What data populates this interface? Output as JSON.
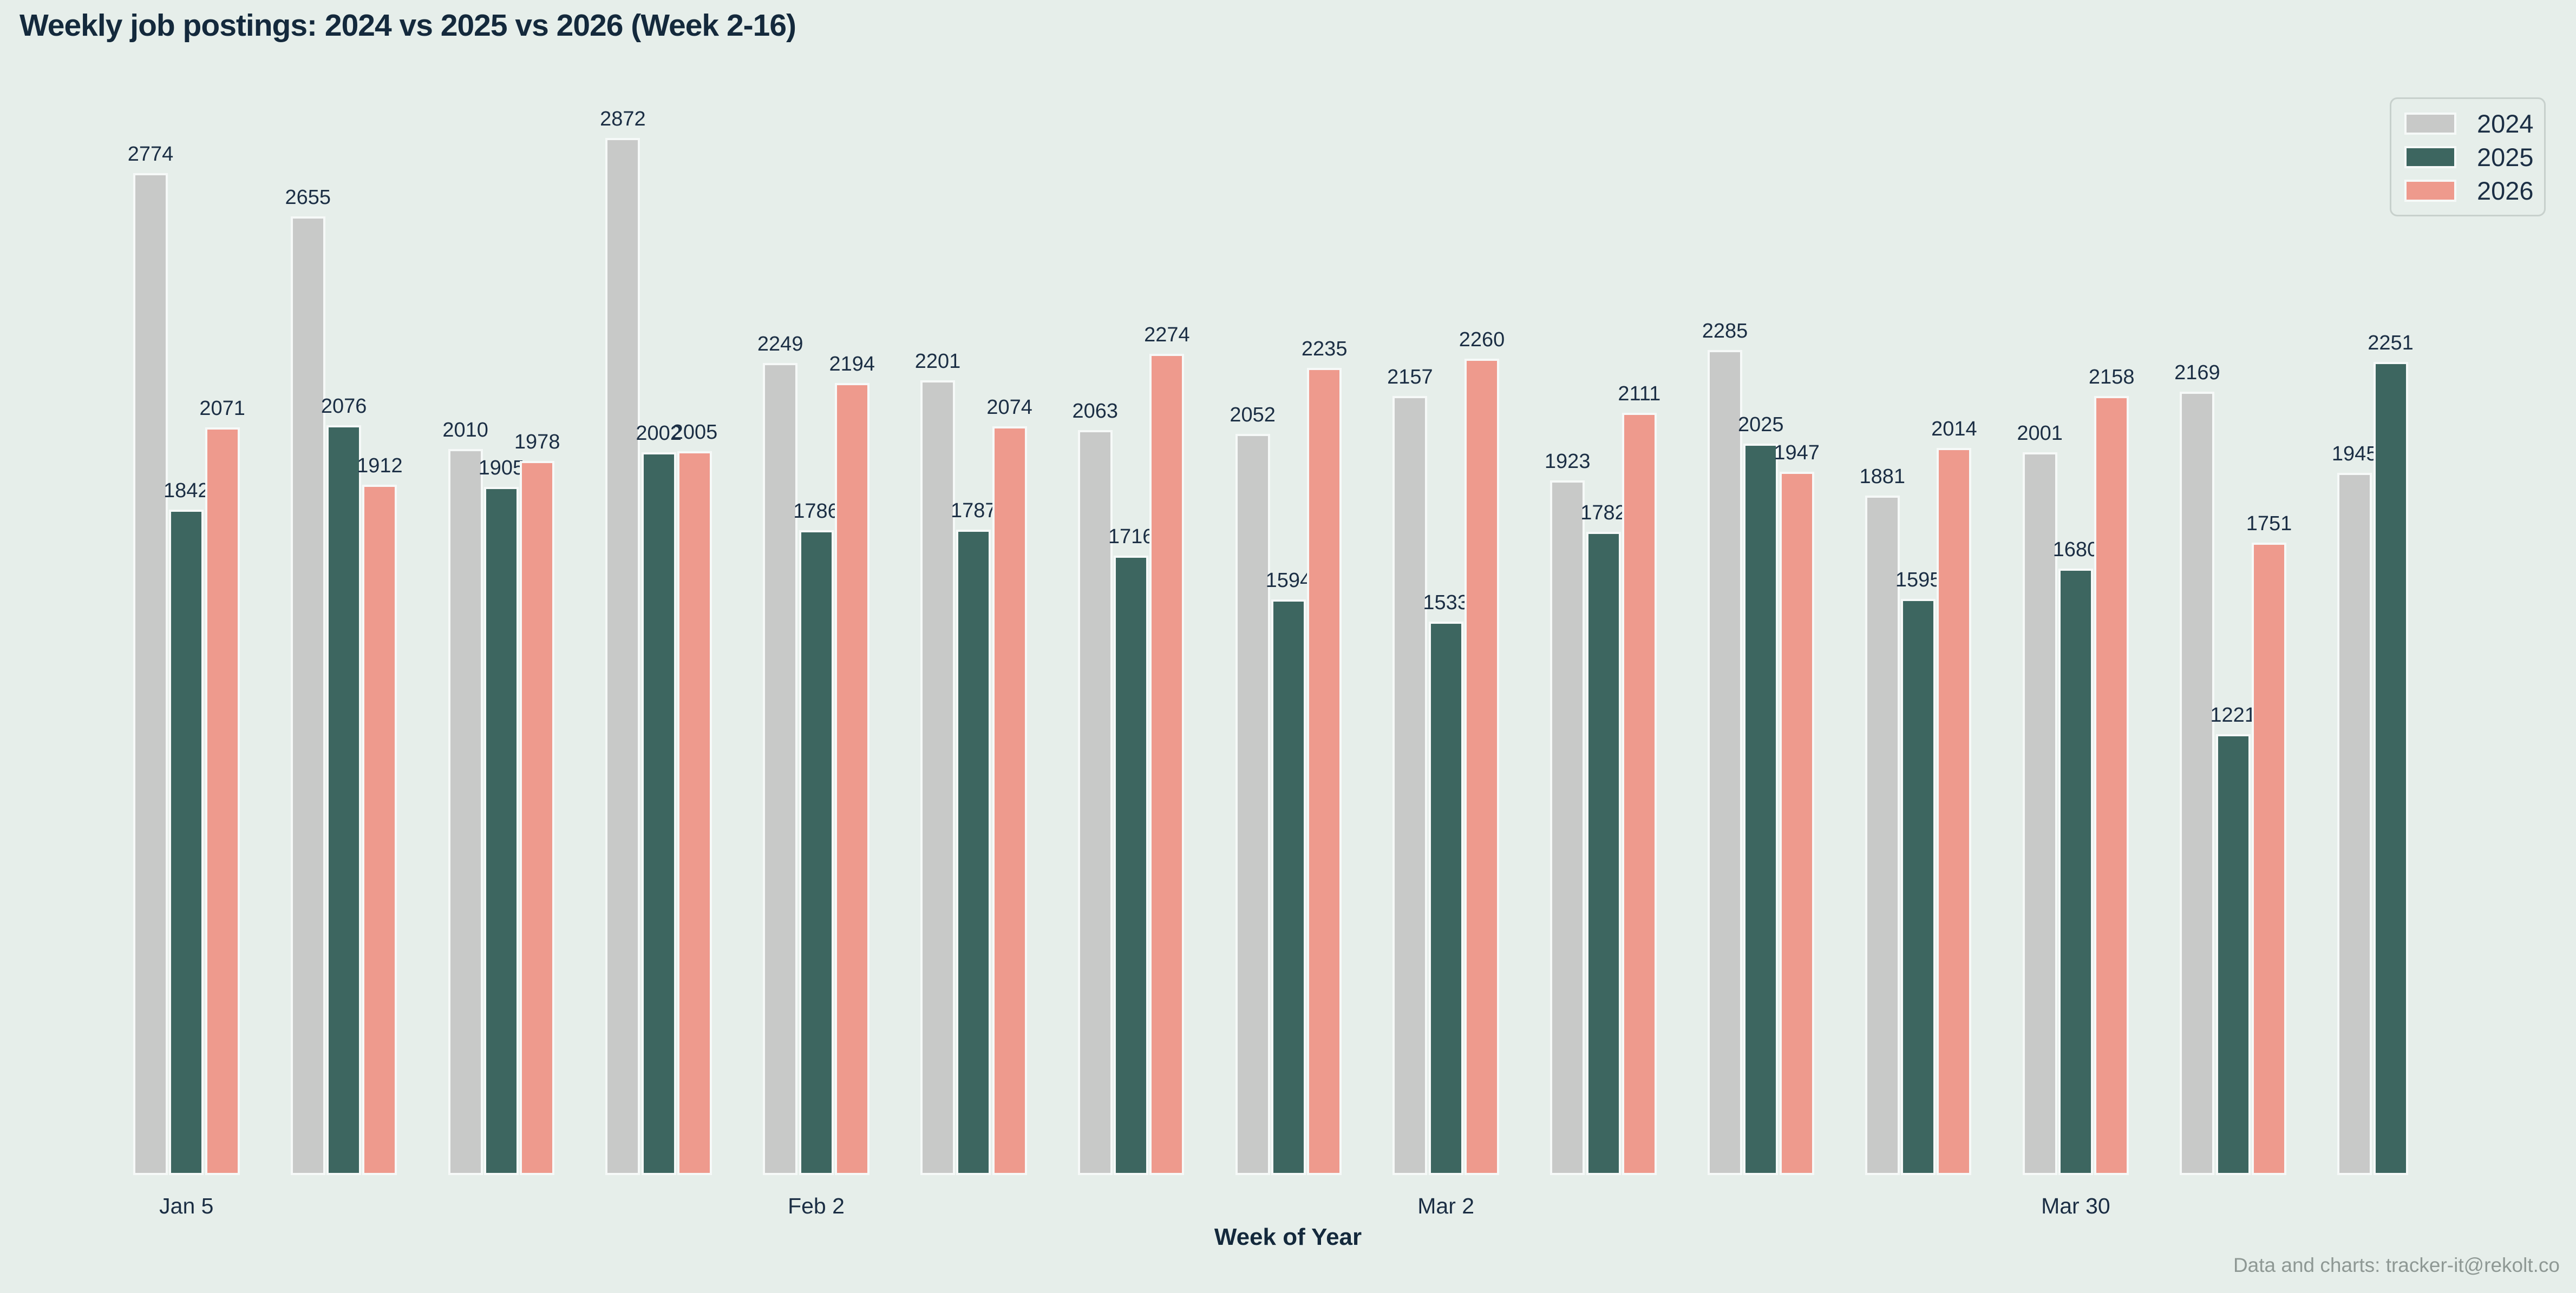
{
  "chart_data": {
    "type": "bar",
    "title": "Weekly job postings: 2024 vs 2025 vs 2026 (Week 2-16)",
    "xlabel": "Week of Year",
    "grid": false,
    "legend_position": "top-right",
    "background_color": "#e6eeea",
    "text_color": "#1b2e44",
    "title_color": "#14293c",
    "bar_edge_color": "#f6f9f8",
    "num_groups": 15,
    "ticks": [
      {
        "group_index": 0,
        "label": "Jan 5"
      },
      {
        "group_index": 4,
        "label": "Feb 2"
      },
      {
        "group_index": 8,
        "label": "Mar 2"
      },
      {
        "group_index": 12,
        "label": "Mar 30"
      }
    ],
    "series": [
      {
        "name": "2024",
        "color": "#c8c9c8",
        "values": [
          2774,
          2655,
          2010,
          2872,
          2249,
          2201,
          2063,
          2052,
          2157,
          1923,
          2285,
          1881,
          2001,
          2169,
          1945
        ]
      },
      {
        "name": "2025",
        "color": "#3d6660",
        "values": [
          1842,
          2076,
          1905,
          2002,
          1786,
          1787,
          1716,
          1594,
          1533,
          1782,
          2025,
          1595,
          1680,
          1221,
          2251
        ]
      },
      {
        "name": "2026",
        "color": "#ee9a8d",
        "values": [
          2071,
          1912,
          1978,
          2005,
          2194,
          2074,
          2274,
          2235,
          2260,
          2111,
          1947,
          2014,
          2158,
          1751,
          null
        ]
      }
    ]
  },
  "footer": "Data and charts: tracker-it@rekolt.co"
}
